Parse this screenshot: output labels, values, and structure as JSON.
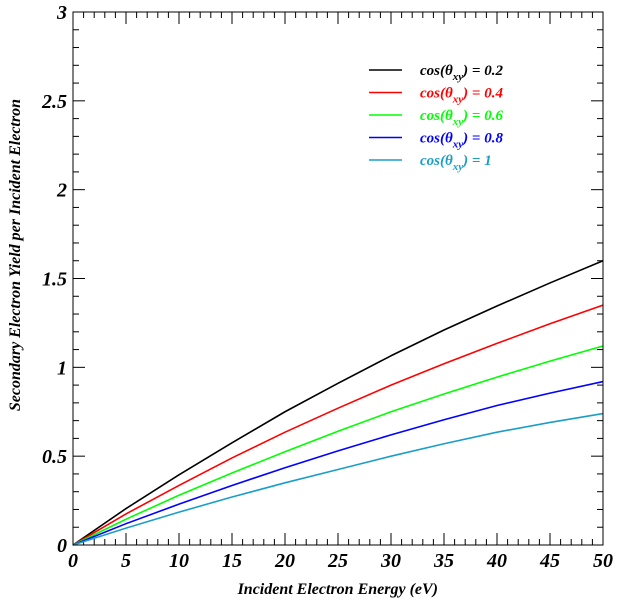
{
  "chart_data": {
    "type": "line",
    "title": "",
    "xlabel": "Incident Electron Energy (eV)",
    "ylabel": "Secondary Electron Yield per Incident Electron",
    "xlim": [
      0,
      50
    ],
    "ylim": [
      0,
      3
    ],
    "x_ticks": [
      "0",
      "5",
      "10",
      "15",
      "20",
      "25",
      "30",
      "35",
      "40",
      "45",
      "50"
    ],
    "y_ticks": [
      "0",
      "0.5",
      "1",
      "1.5",
      "2",
      "2.5",
      "3"
    ],
    "grid": false,
    "legend_position": "top-right",
    "x": [
      0,
      5,
      10,
      15,
      20,
      25,
      30,
      35,
      40,
      45,
      50
    ],
    "series": [
      {
        "name": "cos(θxy) = 0.2",
        "label_prefix": "cos(θ",
        "label_sub": "xy",
        "label_suffix": ") = 0.2",
        "color": "#000000",
        "values": [
          0,
          0.205,
          0.395,
          0.575,
          0.75,
          0.91,
          1.065,
          1.21,
          1.345,
          1.475,
          1.6
        ]
      },
      {
        "name": "cos(θxy) = 0.4",
        "label_prefix": "cos(θ",
        "label_sub": "xy",
        "label_suffix": ") = 0.4",
        "color": "#ff0000",
        "values": [
          0,
          0.175,
          0.335,
          0.49,
          0.635,
          0.77,
          0.9,
          1.02,
          1.135,
          1.245,
          1.35
        ]
      },
      {
        "name": "cos(θxy) = 0.6",
        "label_prefix": "cos(θ",
        "label_sub": "xy",
        "label_suffix": ") = 0.6",
        "color": "#00ff00",
        "values": [
          0,
          0.145,
          0.28,
          0.405,
          0.525,
          0.64,
          0.75,
          0.85,
          0.945,
          1.035,
          1.12
        ]
      },
      {
        "name": "cos(θxy) = 0.8",
        "label_prefix": "cos(θ",
        "label_sub": "xy",
        "label_suffix": ") = 0.8",
        "color": "#0000ff",
        "values": [
          0,
          0.12,
          0.23,
          0.335,
          0.435,
          0.53,
          0.62,
          0.705,
          0.785,
          0.855,
          0.92
        ]
      },
      {
        "name": "cos(θxy) = 1",
        "label_prefix": "cos(θ",
        "label_sub": "xy",
        "label_suffix": ") = 1",
        "color": "#1a9ec8",
        "values": [
          0,
          0.095,
          0.185,
          0.27,
          0.35,
          0.425,
          0.5,
          0.57,
          0.635,
          0.69,
          0.74
        ]
      }
    ]
  }
}
